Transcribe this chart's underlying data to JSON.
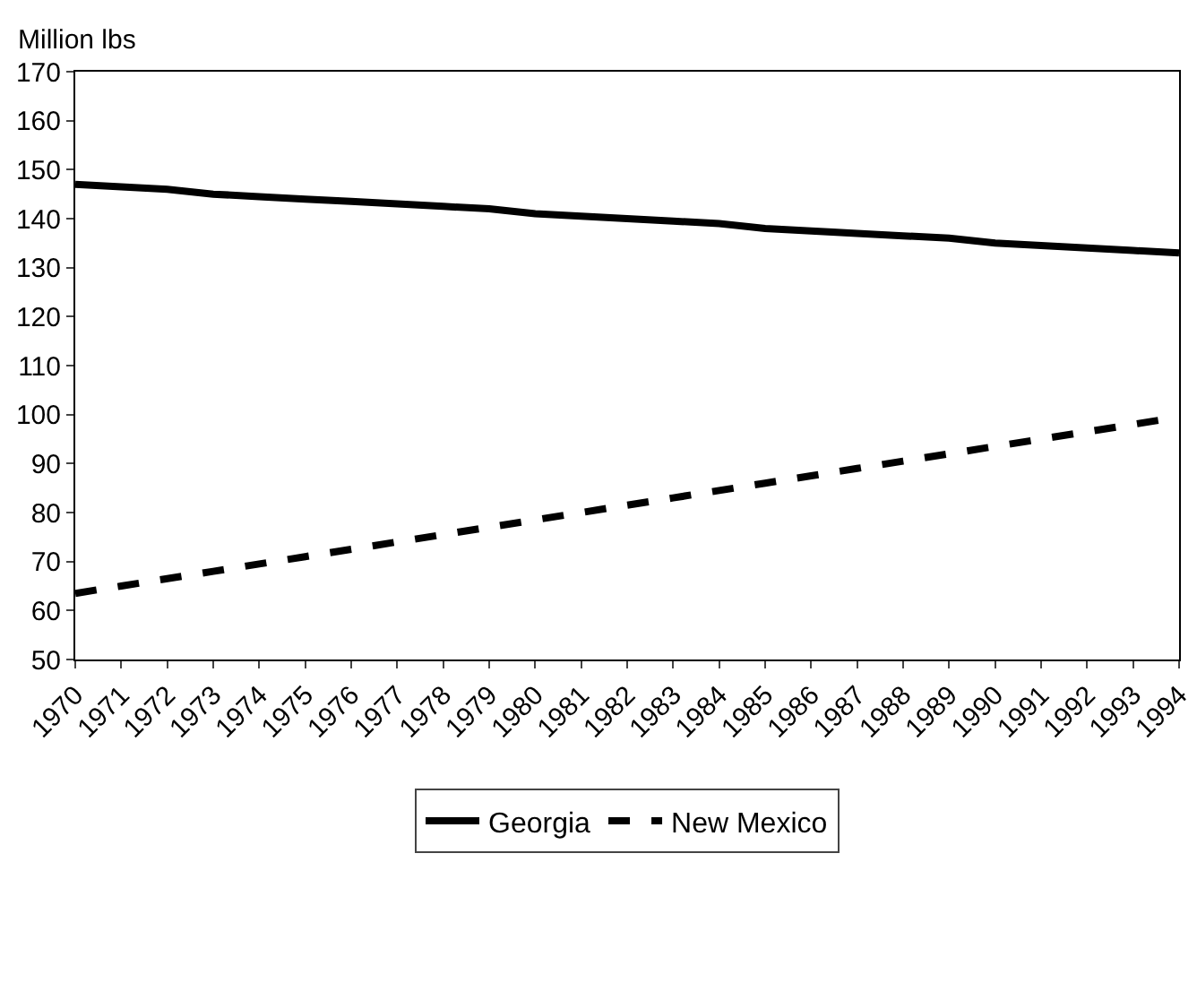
{
  "chart_data": {
    "type": "line",
    "ylabel": "Million lbs",
    "categories": [
      "1970",
      "1971",
      "1972",
      "1973",
      "1974",
      "1975",
      "1976",
      "1977",
      "1978",
      "1979",
      "1980",
      "1981",
      "1982",
      "1983",
      "1984",
      "1985",
      "1986",
      "1987",
      "1988",
      "1989",
      "1990",
      "1991",
      "1992",
      "1993",
      "1994"
    ],
    "series": [
      {
        "name": "Georgia",
        "color": "#000000",
        "line_style": "solid",
        "values": [
          147,
          146.5,
          146,
          145,
          144.5,
          144,
          143.5,
          143,
          142.5,
          142,
          141,
          140.5,
          140,
          139.5,
          139,
          138,
          137.5,
          137,
          136.5,
          136,
          135,
          134.5,
          134,
          133.5,
          133
        ]
      },
      {
        "name": "New Mexico",
        "color": "#000000",
        "line_style": "dashed",
        "values": [
          63.5,
          65,
          66.5,
          68,
          69.5,
          71,
          72.5,
          74,
          75.5,
          77,
          78.5,
          80,
          81.5,
          83,
          84.5,
          86,
          87.5,
          89,
          90.5,
          92,
          93.5,
          95,
          96.5,
          98,
          99.5
        ]
      }
    ],
    "ylim": [
      50,
      170
    ],
    "yticks": [
      50,
      60,
      70,
      80,
      90,
      100,
      110,
      120,
      130,
      140,
      150,
      160,
      170
    ],
    "grid": false,
    "legend": "bottom",
    "marker": "none"
  }
}
